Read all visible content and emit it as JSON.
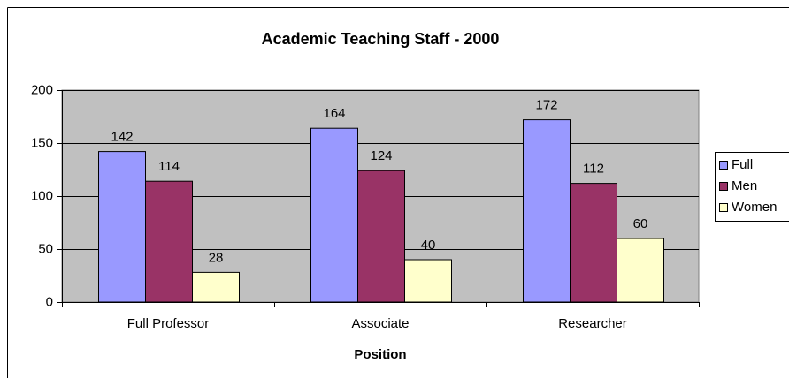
{
  "chart_data": {
    "type": "bar",
    "title": "Academic Teaching Staff - 2000",
    "x_label": "Position",
    "categories": [
      "Full Professor",
      "Associate",
      "Researcher"
    ],
    "series": [
      {
        "name": "Full",
        "color": "#9999ff",
        "values": [
          142,
          164,
          172
        ]
      },
      {
        "name": "Men",
        "color": "#993366",
        "values": [
          114,
          124,
          112
        ]
      },
      {
        "name": "Women",
        "color": "#ffffcc",
        "values": [
          28,
          40,
          60
        ]
      }
    ],
    "ylim": [
      0,
      200
    ],
    "yticks": [
      0,
      50,
      100,
      150,
      200
    ],
    "grid": true,
    "legend": "right"
  }
}
